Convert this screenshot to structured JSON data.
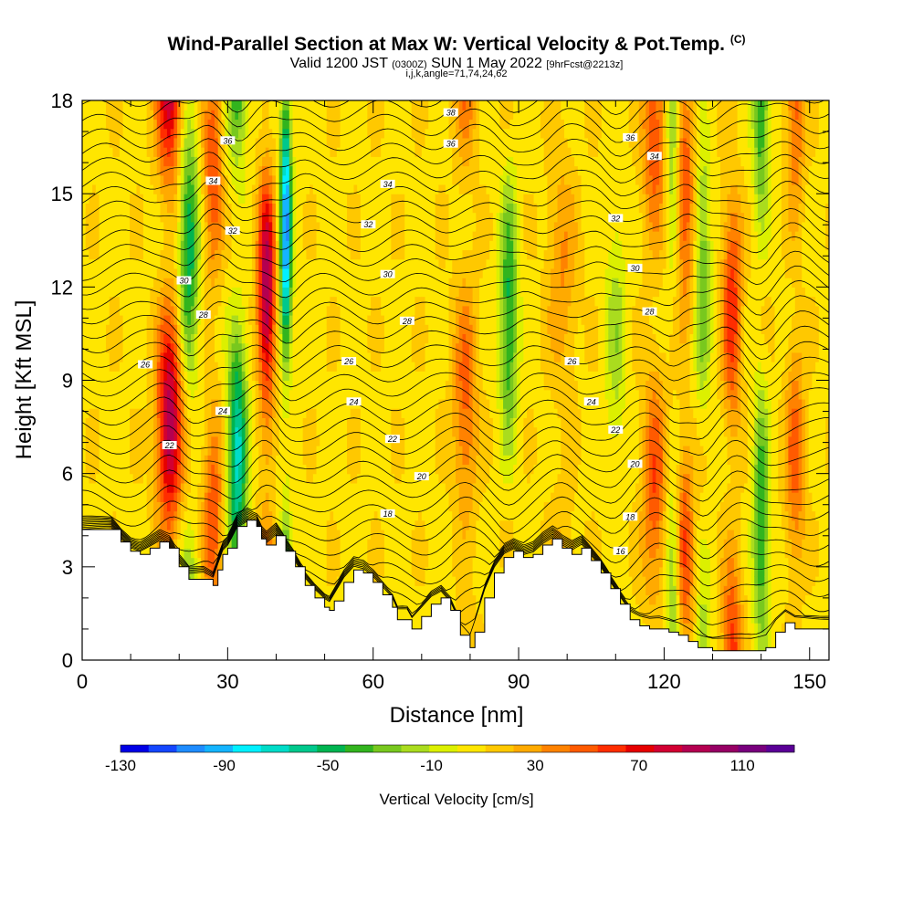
{
  "title": {
    "main": "Wind-Parallel Section at Max W: Vertical Velocity & Pot.Temp.",
    "main_mark": "(C)",
    "valid_prefix": "Valid 1200 JST",
    "valid_z": "(0300Z)",
    "valid_date": "SUN 1 May 2022",
    "valid_fcst": "[9hrFcst@2213z]",
    "indices": "i,j,k,angle=71,74,24,62"
  },
  "chart_data": {
    "type": "heatmap",
    "xlabel": "Distance [nm]",
    "ylabel": "Height [Kft MSL]",
    "xlim": [
      0,
      154
    ],
    "ylim": [
      0,
      18
    ],
    "x_ticks": [
      0,
      30,
      60,
      90,
      120,
      150
    ],
    "y_ticks": [
      0,
      3,
      6,
      9,
      12,
      15,
      18
    ],
    "colorbar": {
      "label": "Vertical Velocity [cm/s]",
      "tick_labels": [
        "-130",
        "-90",
        "-50",
        "-10",
        "30",
        "70",
        "110"
      ],
      "tick_values": [
        -130,
        -90,
        -50,
        -10,
        30,
        70,
        110
      ],
      "range": [
        -130,
        130
      ],
      "colors": [
        "#0000e6",
        "#1446ff",
        "#1e8cff",
        "#14b4ff",
        "#00f0ff",
        "#00dcc8",
        "#00c88c",
        "#00b450",
        "#32b41e",
        "#78c81e",
        "#aadc1e",
        "#dcf000",
        "#ffe600",
        "#ffc800",
        "#ffaa00",
        "#ff8200",
        "#ff5a00",
        "#ff2d00",
        "#e60000",
        "#d20032",
        "#b40050",
        "#960064",
        "#78007d",
        "#5a0096"
      ]
    },
    "updrafts": [
      {
        "x": 18,
        "amplitude": 85,
        "width": 2.6
      },
      {
        "x": 27,
        "amplitude": 45,
        "width": 2.0
      },
      {
        "x": 38,
        "amplitude": 90,
        "width": 1.8
      },
      {
        "x": 79,
        "amplitude": 40,
        "width": 2.5
      },
      {
        "x": 99,
        "amplitude": 25,
        "width": 3.0
      },
      {
        "x": 118,
        "amplitude": 45,
        "width": 2.5
      },
      {
        "x": 124,
        "amplitude": 50,
        "width": 2.2
      },
      {
        "x": 134,
        "amplitude": 55,
        "width": 2.0
      },
      {
        "x": 147,
        "amplitude": 40,
        "width": 2.0
      }
    ],
    "downdrafts": [
      {
        "x": 22,
        "amplitude": -60,
        "width": 2.0
      },
      {
        "x": 32,
        "amplitude": -75,
        "width": 2.0
      },
      {
        "x": 42,
        "amplitude": -110,
        "width": 1.2
      },
      {
        "x": 88,
        "amplitude": -55,
        "width": 1.8
      },
      {
        "x": 110,
        "amplitude": -25,
        "width": 2.0
      },
      {
        "x": 122,
        "amplitude": -45,
        "width": 1.6
      },
      {
        "x": 128,
        "amplitude": -40,
        "width": 1.6
      },
      {
        "x": 140,
        "amplitude": -55,
        "width": 1.6
      }
    ],
    "terrain": [
      [
        0,
        4.2
      ],
      [
        6,
        4.2
      ],
      [
        8,
        3.8
      ],
      [
        10,
        3.5
      ],
      [
        12,
        3.4
      ],
      [
        14,
        3.6
      ],
      [
        16,
        3.8
      ],
      [
        18,
        3.6
      ],
      [
        20,
        3.0
      ],
      [
        22,
        2.6
      ],
      [
        25,
        2.6
      ],
      [
        27,
        2.4
      ],
      [
        28,
        2.9
      ],
      [
        29,
        3.4
      ],
      [
        30,
        3.6
      ],
      [
        32,
        4.3
      ],
      [
        34,
        4.5
      ],
      [
        36,
        4.3
      ],
      [
        37,
        3.9
      ],
      [
        38,
        3.7
      ],
      [
        40,
        4.0
      ],
      [
        42,
        3.5
      ],
      [
        44,
        3.0
      ],
      [
        46,
        2.4
      ],
      [
        48,
        2.0
      ],
      [
        50,
        1.7
      ],
      [
        51,
        1.6
      ],
      [
        52,
        1.9
      ],
      [
        54,
        2.5
      ],
      [
        56,
        2.9
      ],
      [
        58,
        2.8
      ],
      [
        60,
        2.5
      ],
      [
        62,
        2.1
      ],
      [
        64,
        1.7
      ],
      [
        65,
        1.3
      ],
      [
        67,
        1.3
      ],
      [
        68,
        1.0
      ],
      [
        70,
        1.4
      ],
      [
        72,
        1.8
      ],
      [
        74,
        2.0
      ],
      [
        76,
        1.6
      ],
      [
        78,
        0.8
      ],
      [
        80,
        0.4
      ],
      [
        81,
        0.9
      ],
      [
        83,
        2.0
      ],
      [
        85,
        2.8
      ],
      [
        87,
        3.3
      ],
      [
        89,
        3.5
      ],
      [
        91,
        3.3
      ],
      [
        93,
        3.4
      ],
      [
        95,
        3.7
      ],
      [
        97,
        3.9
      ],
      [
        99,
        3.6
      ],
      [
        101,
        3.4
      ],
      [
        103,
        3.6
      ],
      [
        105,
        3.2
      ],
      [
        107,
        2.8
      ],
      [
        109,
        2.3
      ],
      [
        111,
        1.8
      ],
      [
        113,
        1.3
      ],
      [
        115,
        1.1
      ],
      [
        117,
        1.0
      ],
      [
        119,
        1.0
      ],
      [
        121,
        0.9
      ],
      [
        123,
        0.8
      ],
      [
        125,
        0.6
      ],
      [
        127,
        0.4
      ],
      [
        130,
        0.3
      ],
      [
        134,
        0.3
      ],
      [
        138,
        0.3
      ],
      [
        141,
        0.4
      ],
      [
        143,
        0.9
      ],
      [
        145,
        1.2
      ],
      [
        147,
        1.0
      ],
      [
        149,
        1.0
      ],
      [
        154,
        1.0
      ]
    ],
    "contours": [
      {
        "value": 16,
        "label": "16"
      },
      {
        "value": 18,
        "label": "18"
      },
      {
        "value": 20,
        "label": "20"
      },
      {
        "value": 22,
        "label": "22"
      },
      {
        "value": 24,
        "label": "24"
      },
      {
        "value": 26,
        "label": "26"
      },
      {
        "value": 28,
        "label": "28"
      },
      {
        "value": 30,
        "label": "30"
      },
      {
        "value": 32,
        "label": "32"
      },
      {
        "value": 34,
        "label": "34"
      },
      {
        "value": 36,
        "label": "36"
      },
      {
        "value": 38,
        "label": "38"
      }
    ],
    "contour_labels": [
      {
        "label": "38",
        "x": 76,
        "y": 17.6
      },
      {
        "label": "36",
        "x": 30,
        "y": 16.7
      },
      {
        "label": "36",
        "x": 76,
        "y": 16.6
      },
      {
        "label": "36",
        "x": 113,
        "y": 16.8
      },
      {
        "label": "34",
        "x": 27,
        "y": 15.4
      },
      {
        "label": "34",
        "x": 63,
        "y": 15.3
      },
      {
        "label": "34",
        "x": 118,
        "y": 16.2
      },
      {
        "label": "32",
        "x": 31,
        "y": 13.8
      },
      {
        "label": "32",
        "x": 59,
        "y": 14.0
      },
      {
        "label": "32",
        "x": 110,
        "y": 14.2
      },
      {
        "label": "30",
        "x": 21,
        "y": 12.2
      },
      {
        "label": "30",
        "x": 63,
        "y": 12.4
      },
      {
        "label": "30",
        "x": 114,
        "y": 12.6
      },
      {
        "label": "28",
        "x": 25,
        "y": 11.1
      },
      {
        "label": "28",
        "x": 67,
        "y": 10.9
      },
      {
        "label": "28",
        "x": 117,
        "y": 11.2
      },
      {
        "label": "26",
        "x": 13,
        "y": 9.5
      },
      {
        "label": "26",
        "x": 55,
        "y": 9.6
      },
      {
        "label": "26",
        "x": 101,
        "y": 9.6
      },
      {
        "label": "24",
        "x": 29,
        "y": 8.0
      },
      {
        "label": "24",
        "x": 56,
        "y": 8.3
      },
      {
        "label": "24",
        "x": 105,
        "y": 8.3
      },
      {
        "label": "22",
        "x": 18,
        "y": 6.9
      },
      {
        "label": "22",
        "x": 64,
        "y": 7.1
      },
      {
        "label": "22",
        "x": 110,
        "y": 7.4
      },
      {
        "label": "20",
        "x": 70,
        "y": 5.9
      },
      {
        "label": "20",
        "x": 114,
        "y": 6.3
      },
      {
        "label": "18",
        "x": 63,
        "y": 4.7
      },
      {
        "label": "18",
        "x": 113,
        "y": 4.6
      },
      {
        "label": "16",
        "x": 111,
        "y": 3.5
      }
    ]
  }
}
